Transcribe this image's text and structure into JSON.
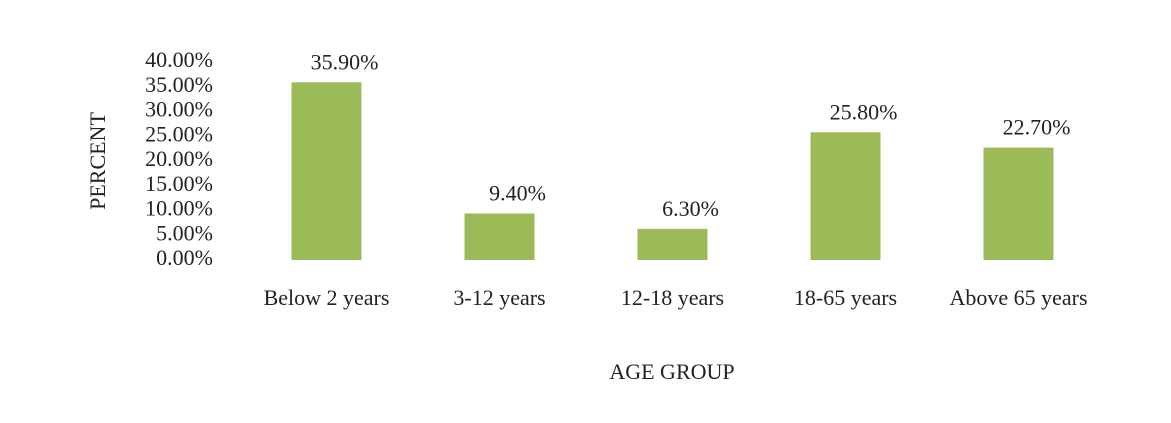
{
  "chart_data": {
    "type": "bar",
    "x_label": "AGE GROUP",
    "y_label": "PERCENT",
    "categories": [
      "Below 2 years",
      "3-12 years",
      "12-18 years",
      "18-65 years",
      "Above 65 years"
    ],
    "values": [
      35.9,
      9.4,
      6.3,
      25.8,
      22.7
    ],
    "value_labels": [
      "35.90%",
      "9.40%",
      "6.30%",
      "25.80%",
      "22.70%"
    ],
    "color": "#9bbb59",
    "ylim": [
      0,
      40
    ],
    "yticks": [
      {
        "value": 0,
        "label": "0.00%"
      },
      {
        "value": 5,
        "label": "5.00%"
      },
      {
        "value": 10,
        "label": "10.00%"
      },
      {
        "value": 15,
        "label": "15.00%"
      },
      {
        "value": 20,
        "label": "20.00%"
      },
      {
        "value": 25,
        "label": "25.00%"
      },
      {
        "value": 30,
        "label": "30.00%"
      },
      {
        "value": 35,
        "label": "35.00%"
      },
      {
        "value": 40,
        "label": "40.00%"
      }
    ],
    "grid": false
  }
}
